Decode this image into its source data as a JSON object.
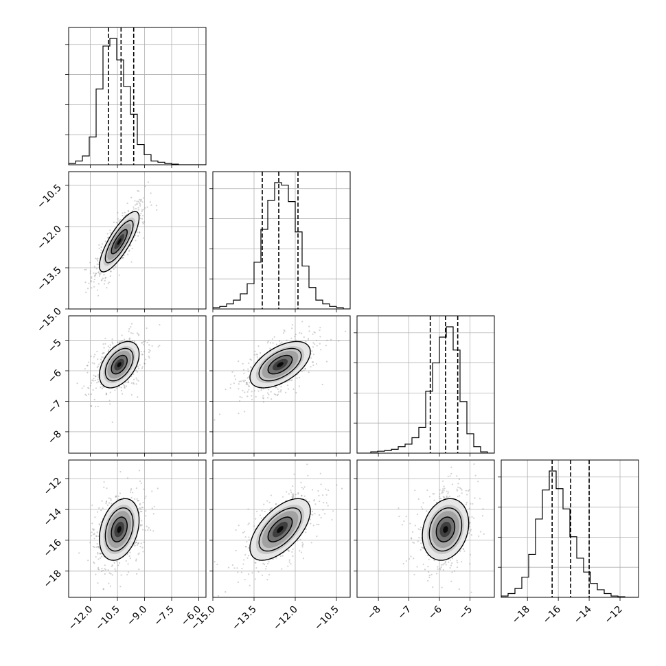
{
  "chart_data": {
    "type": "corner",
    "grid": true,
    "parameters": [
      {
        "range": [
          -13.2,
          -5.6
        ],
        "ticks": [
          -12.0,
          -10.5,
          -9.0,
          -7.5,
          -6.0
        ],
        "tick_labels": [
          "−12.0",
          "−10.5",
          "−9.0",
          "−7.5",
          "−6.0"
        ],
        "quantiles": [
          -11.0,
          -10.3,
          -9.6
        ]
      },
      {
        "range": [
          -15.0,
          -10.0
        ],
        "ticks": [
          -15.0,
          -13.5,
          -12.0,
          -10.5
        ],
        "tick_labels": [
          "−15.0",
          "−13.5",
          "−12.0",
          "−10.5"
        ],
        "quantiles": [
          -13.2,
          -12.6,
          -11.9
        ]
      },
      {
        "range": [
          -8.7,
          -4.2
        ],
        "ticks": [
          -8,
          -7,
          -6,
          -5
        ],
        "tick_labels": [
          "−8",
          "−7",
          "−6",
          "−5"
        ],
        "quantiles": [
          -6.3,
          -5.8,
          -5.4
        ]
      },
      {
        "range": [
          -19.7,
          -10.8
        ],
        "ticks": [
          -18,
          -16,
          -14,
          -12
        ],
        "tick_labels": [
          "−18",
          "−16",
          "−14",
          "−12"
        ],
        "quantiles": [
          -16.4,
          -15.2,
          -14.0
        ]
      }
    ],
    "histograms": [
      {
        "edges_start": -13.2,
        "bin_width": 0.38,
        "counts": [
          1,
          3,
          7,
          22,
          60,
          94,
          100,
          83,
          62,
          40,
          16,
          8,
          3,
          2,
          1,
          0.5,
          0,
          0,
          0,
          0
        ]
      },
      {
        "edges_start": -15.0,
        "bin_width": 0.25,
        "counts": [
          1,
          2,
          4,
          7,
          12,
          20,
          37,
          63,
          86,
          100,
          98,
          85,
          61,
          34,
          17,
          7,
          4,
          2,
          1,
          0
        ]
      },
      {
        "edges_start": -8.7,
        "bin_width": 0.225,
        "counts": [
          0,
          0,
          1,
          1.5,
          2,
          3,
          5,
          7,
          12,
          20,
          48,
          70,
          90,
          98,
          80,
          40,
          15,
          5,
          1,
          0
        ]
      },
      {
        "edges_start": -19.7,
        "bin_width": 0.445,
        "counts": [
          1,
          3,
          7,
          16,
          34,
          62,
          85,
          100,
          86,
          70,
          48,
          31,
          20,
          11,
          6,
          3,
          1,
          0.5,
          0,
          0
        ]
      }
    ],
    "correlations": [
      [
        1,
        0.8,
        0.45,
        0.3
      ],
      [
        0.8,
        1,
        0.55,
        0.6
      ],
      [
        0.45,
        0.55,
        1,
        0.2
      ],
      [
        0.3,
        0.6,
        0.2,
        1
      ]
    ],
    "sigmas": [
      0.55,
      0.55,
      0.38,
      1.0
    ],
    "centers": [
      -10.4,
      -12.55,
      -5.8,
      -15.3
    ]
  }
}
